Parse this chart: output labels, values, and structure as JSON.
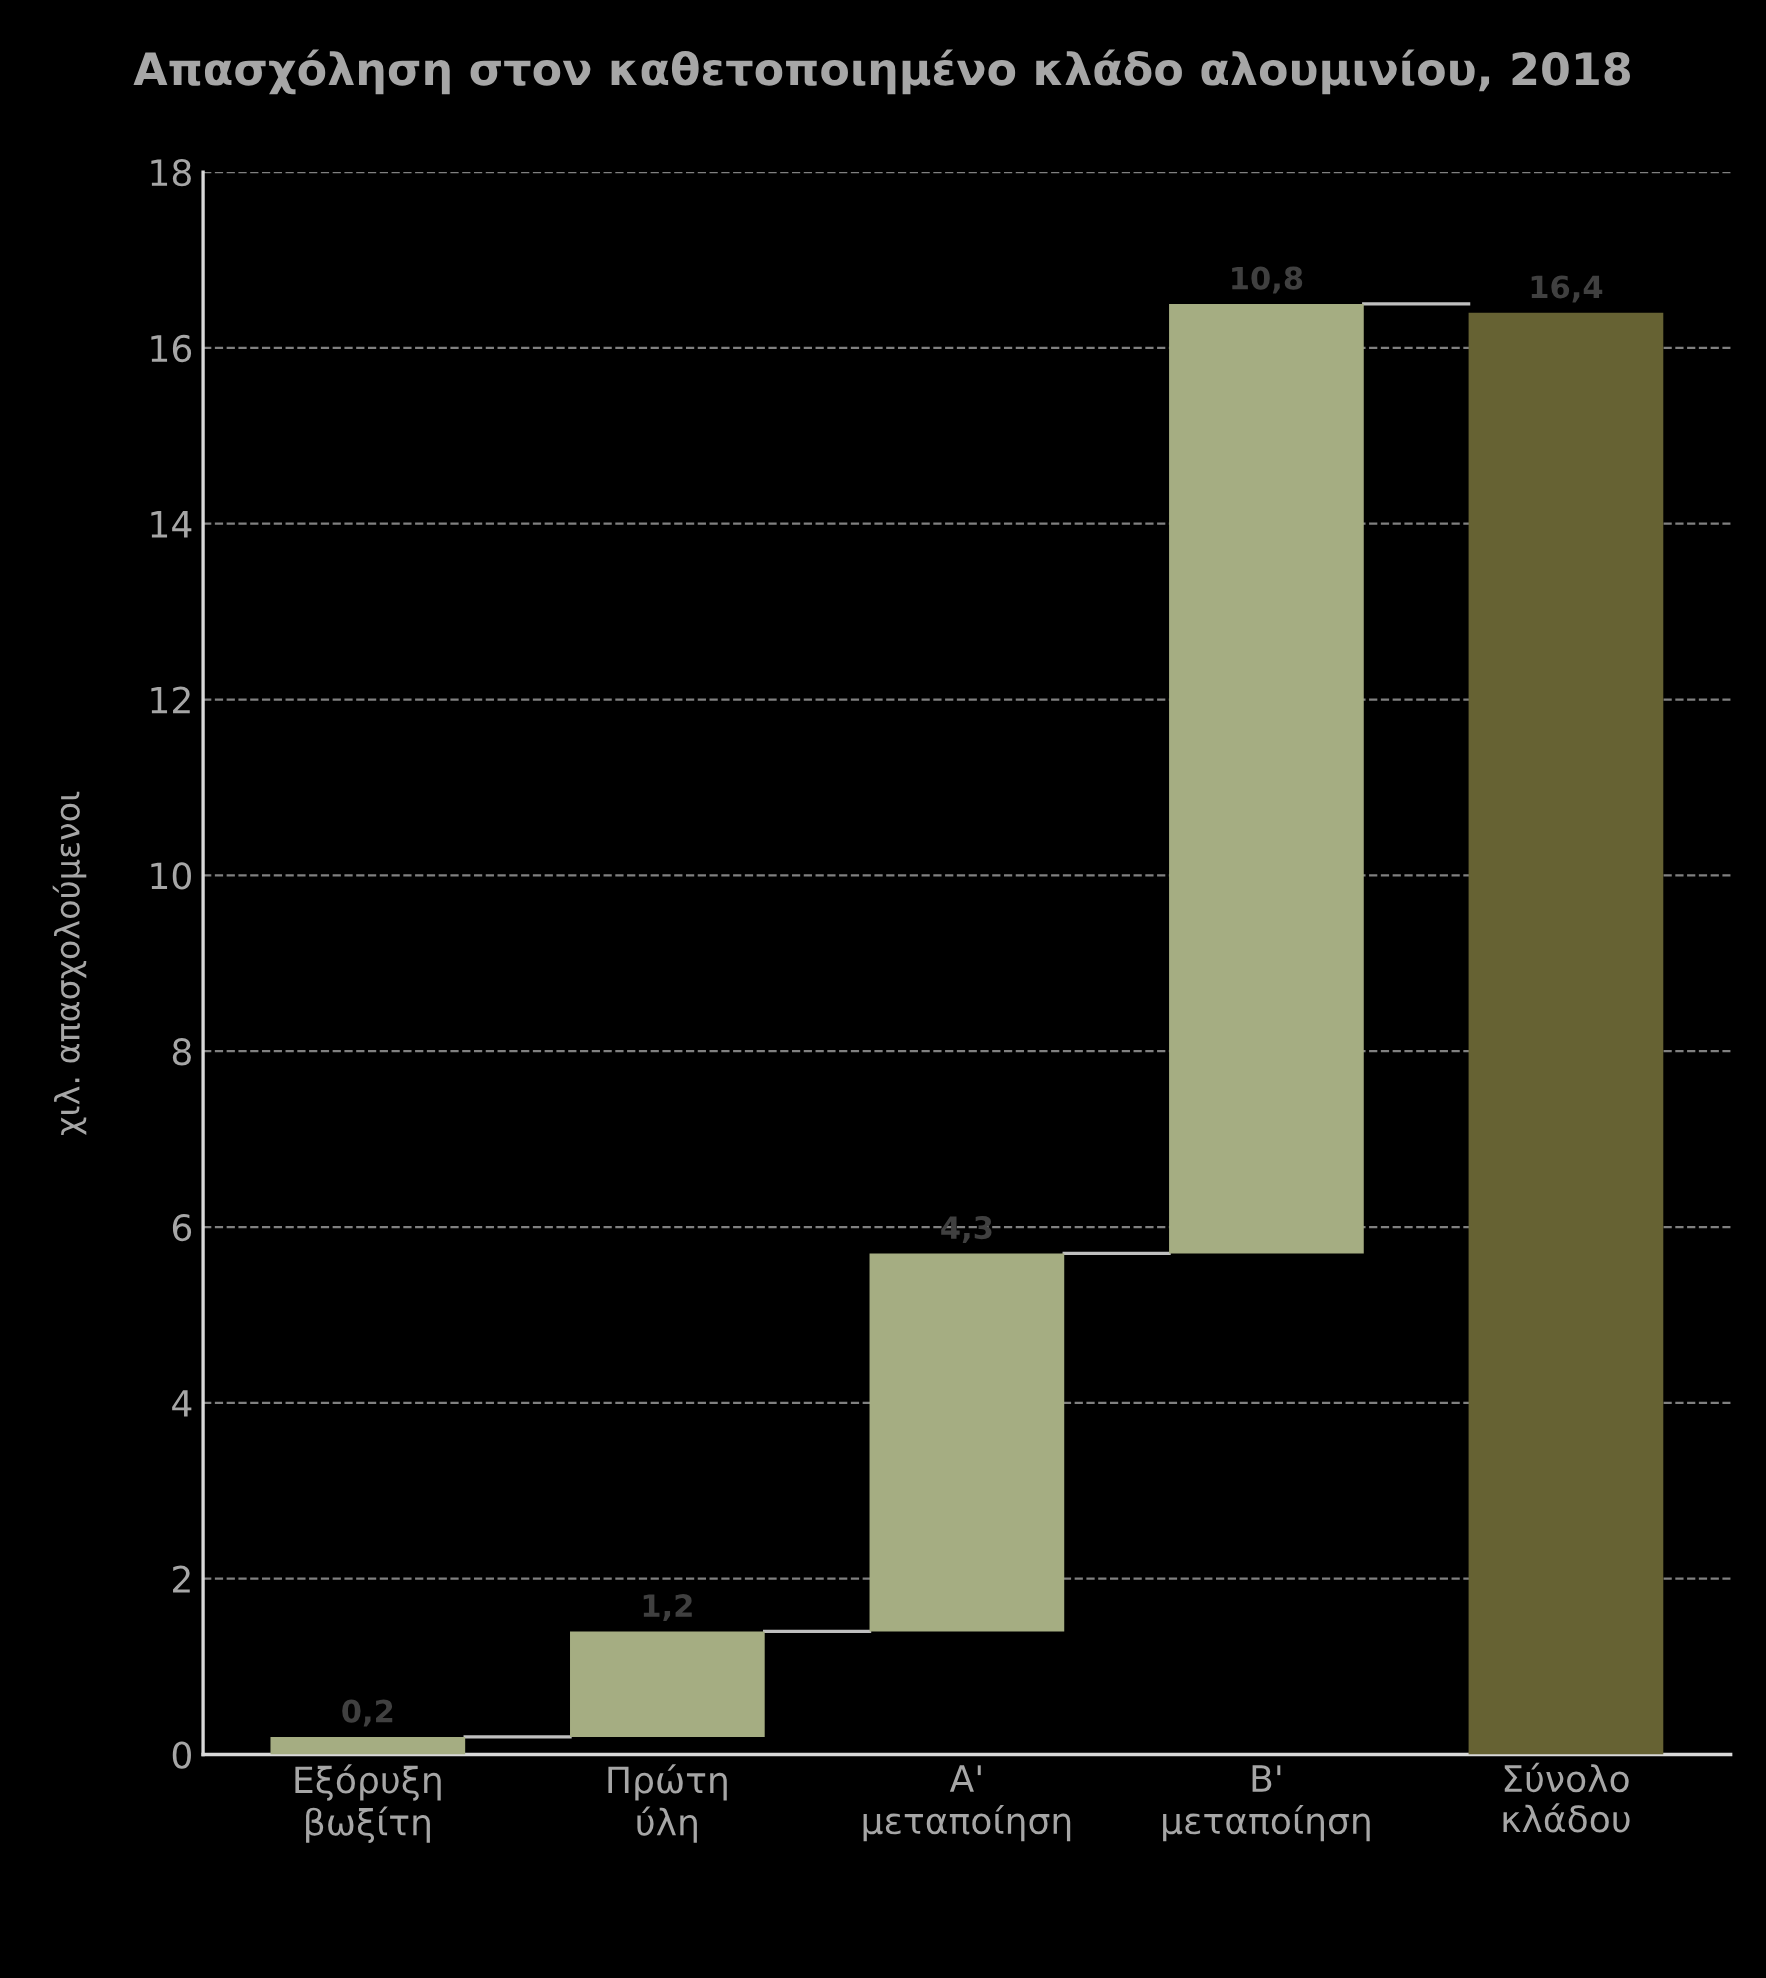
{
  "chart_data": {
    "type": "bar",
    "title": "Απασχόληση στον καθετοποιημένο κλάδο αλουμινίου, 2018",
    "ylabel": "χιλ. απασχολούμενοι",
    "categories": [
      "Εξόρυξη\nβωξίτη",
      "Πρώτη\nύλη",
      "Α'\nμεταποίηση",
      "Β'\nμεταποίηση",
      "Σύνολο\nκλάδου"
    ],
    "values": [
      0.2,
      1.2,
      4.3,
      10.8,
      16.4
    ],
    "base": [
      0,
      0.2,
      1.4,
      5.7,
      0
    ],
    "colors": [
      "#a5ad82",
      "#a5ad82",
      "#a5ad82",
      "#a5ad82",
      "#666233"
    ],
    "value_labels": [
      "0,2",
      "1,2",
      "4,3",
      "10,8",
      "16,4"
    ],
    "ylim": [
      0,
      18
    ],
    "yticks": [
      0,
      2,
      4,
      6,
      8,
      10,
      12,
      14,
      16,
      18
    ],
    "grid": "y",
    "legend": false
  }
}
